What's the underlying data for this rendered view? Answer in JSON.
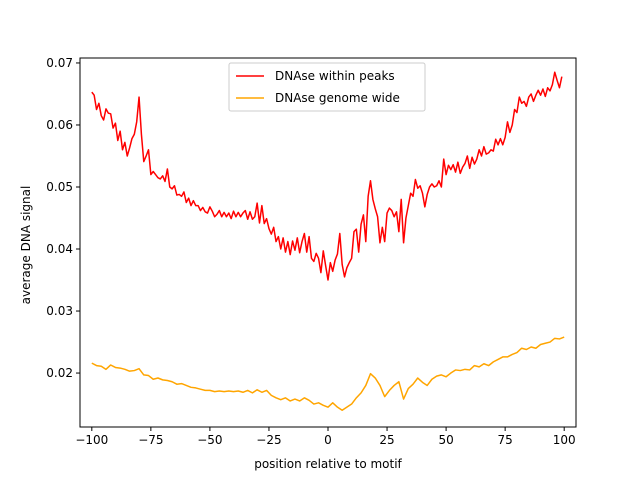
{
  "chart_data": {
    "type": "line",
    "title": "",
    "xlabel": "position relative to motif",
    "ylabel": "average DNA signal",
    "xlim": [
      -105,
      105
    ],
    "ylim": [
      0.0113,
      0.0708
    ],
    "xticks": [
      -100,
      -75,
      -50,
      -25,
      0,
      25,
      50,
      75,
      100
    ],
    "xtick_labels": [
      "−100",
      "−75",
      "−50",
      "−25",
      "0",
      "25",
      "50",
      "75",
      "100"
    ],
    "yticks": [
      0.02,
      0.03,
      0.04,
      0.05,
      0.06,
      0.07
    ],
    "ytick_labels": [
      "0.02",
      "0.03",
      "0.04",
      "0.05",
      "0.06",
      "0.07"
    ],
    "grid": false,
    "legend": {
      "placement": "top-center"
    },
    "series": [
      {
        "name": "DNAse within peaks",
        "color": "#ff0000",
        "points": [
          [
            -100,
            0.0653
          ],
          [
            -99,
            0.0648
          ],
          [
            -98,
            0.0625
          ],
          [
            -97,
            0.0635
          ],
          [
            -96,
            0.0615
          ],
          [
            -95,
            0.0608
          ],
          [
            -94,
            0.0626
          ],
          [
            -93,
            0.0619
          ],
          [
            -92,
            0.0618
          ],
          [
            -91,
            0.0595
          ],
          [
            -90,
            0.0603
          ],
          [
            -89,
            0.0575
          ],
          [
            -88,
            0.059
          ],
          [
            -87,
            0.056
          ],
          [
            -86,
            0.0572
          ],
          [
            -85,
            0.055
          ],
          [
            -84,
            0.0563
          ],
          [
            -83,
            0.0578
          ],
          [
            -82,
            0.0585
          ],
          [
            -81,
            0.0605
          ],
          [
            -80,
            0.0645
          ],
          [
            -79,
            0.0585
          ],
          [
            -78,
            0.0541
          ],
          [
            -77,
            0.055
          ],
          [
            -76,
            0.056
          ],
          [
            -75,
            0.052
          ],
          [
            -74,
            0.0525
          ],
          [
            -73,
            0.052
          ],
          [
            -72,
            0.0515
          ],
          [
            -71,
            0.0513
          ],
          [
            -70,
            0.0518
          ],
          [
            -69,
            0.0509
          ],
          [
            -68,
            0.0529
          ],
          [
            -67,
            0.05
          ],
          [
            -66,
            0.0497
          ],
          [
            -65,
            0.0502
          ],
          [
            -64,
            0.0487
          ],
          [
            -63,
            0.0488
          ],
          [
            -62,
            0.0485
          ],
          [
            -61,
            0.0492
          ],
          [
            -60,
            0.0475
          ],
          [
            -59,
            0.0482
          ],
          [
            -58,
            0.047
          ],
          [
            -57,
            0.0478
          ],
          [
            -56,
            0.047
          ],
          [
            -55,
            0.047
          ],
          [
            -54,
            0.0462
          ],
          [
            -53,
            0.0467
          ],
          [
            -52,
            0.046
          ],
          [
            -51,
            0.0458
          ],
          [
            -50,
            0.0468
          ],
          [
            -49,
            0.0461
          ],
          [
            -48,
            0.0452
          ],
          [
            -47,
            0.0456
          ],
          [
            -46,
            0.0462
          ],
          [
            -45,
            0.0452
          ],
          [
            -44,
            0.0459
          ],
          [
            -43,
            0.0452
          ],
          [
            -42,
            0.0458
          ],
          [
            -41,
            0.0449
          ],
          [
            -40,
            0.0461
          ],
          [
            -39,
            0.0452
          ],
          [
            -38,
            0.0459
          ],
          [
            -37,
            0.0452
          ],
          [
            -36,
            0.0458
          ],
          [
            -35,
            0.0462
          ],
          [
            -34,
            0.0448
          ],
          [
            -33,
            0.046
          ],
          [
            -32,
            0.0448
          ],
          [
            -31,
            0.0452
          ],
          [
            -30,
            0.0474
          ],
          [
            -29,
            0.0442
          ],
          [
            -28,
            0.047
          ],
          [
            -27,
            0.0441
          ],
          [
            -26,
            0.0449
          ],
          [
            -25,
            0.0433
          ],
          [
            -24,
            0.0424
          ],
          [
            -23,
            0.0435
          ],
          [
            -22,
            0.0412
          ],
          [
            -21,
            0.042
          ],
          [
            -20,
            0.04
          ],
          [
            -19,
            0.0418
          ],
          [
            -18,
            0.0395
          ],
          [
            -17,
            0.0412
          ],
          [
            -16,
            0.0391
          ],
          [
            -15,
            0.0413
          ],
          [
            -14,
            0.0398
          ],
          [
            -13,
            0.0418
          ],
          [
            -12,
            0.0394
          ],
          [
            -11,
            0.0412
          ],
          [
            -10,
            0.0425
          ],
          [
            -9,
            0.0395
          ],
          [
            -8,
            0.042
          ],
          [
            -7,
            0.0385
          ],
          [
            -6,
            0.038
          ],
          [
            -5,
            0.0393
          ],
          [
            -4,
            0.0385
          ],
          [
            -3,
            0.0362
          ],
          [
            -2,
            0.0397
          ],
          [
            -1,
            0.0373
          ],
          [
            0,
            0.035
          ],
          [
            1,
            0.0378
          ],
          [
            2,
            0.0364
          ],
          [
            3,
            0.0382
          ],
          [
            4,
            0.0392
          ],
          [
            5,
            0.0425
          ],
          [
            6,
            0.0375
          ],
          [
            7,
            0.0355
          ],
          [
            8,
            0.037
          ],
          [
            9,
            0.0378
          ],
          [
            10,
            0.0385
          ],
          [
            11,
            0.0428
          ],
          [
            12,
            0.0432
          ],
          [
            13,
            0.0395
          ],
          [
            14,
            0.044
          ],
          [
            15,
            0.0455
          ],
          [
            16,
            0.0412
          ],
          [
            17,
            0.0485
          ],
          [
            18,
            0.051
          ],
          [
            19,
            0.048
          ],
          [
            20,
            0.0465
          ],
          [
            21,
            0.0452
          ],
          [
            22,
            0.041
          ],
          [
            23,
            0.0435
          ],
          [
            24,
            0.0412
          ],
          [
            25,
            0.0458
          ],
          [
            26,
            0.0466
          ],
          [
            27,
            0.0462
          ],
          [
            28,
            0.0452
          ],
          [
            29,
            0.046
          ],
          [
            30,
            0.0428
          ],
          [
            31,
            0.048
          ],
          [
            32,
            0.041
          ],
          [
            33,
            0.045
          ],
          [
            34,
            0.047
          ],
          [
            35,
            0.049
          ],
          [
            36,
            0.0485
          ],
          [
            37,
            0.0512
          ],
          [
            38,
            0.0498
          ],
          [
            39,
            0.0502
          ],
          [
            40,
            0.049
          ],
          [
            41,
            0.0468
          ],
          [
            42,
            0.0488
          ],
          [
            43,
            0.05
          ],
          [
            44,
            0.0505
          ],
          [
            45,
            0.05
          ],
          [
            46,
            0.0502
          ],
          [
            47,
            0.051
          ],
          [
            48,
            0.05
          ],
          [
            49,
            0.0545
          ],
          [
            50,
            0.052
          ],
          [
            51,
            0.0535
          ],
          [
            52,
            0.0528
          ],
          [
            53,
            0.0536
          ],
          [
            54,
            0.0524
          ],
          [
            55,
            0.054
          ],
          [
            56,
            0.0522
          ],
          [
            57,
            0.0532
          ],
          [
            58,
            0.0538
          ],
          [
            59,
            0.055
          ],
          [
            60,
            0.053
          ],
          [
            61,
            0.0548
          ],
          [
            62,
            0.0537
          ],
          [
            63,
            0.0545
          ],
          [
            64,
            0.056
          ],
          [
            65,
            0.055
          ],
          [
            66,
            0.0565
          ],
          [
            67,
            0.0553
          ],
          [
            68,
            0.0555
          ],
          [
            69,
            0.056
          ],
          [
            70,
            0.0558
          ],
          [
            71,
            0.0577
          ],
          [
            72,
            0.0568
          ],
          [
            73,
            0.0578
          ],
          [
            74,
            0.0568
          ],
          [
            75,
            0.058
          ],
          [
            76,
            0.0605
          ],
          [
            77,
            0.0588
          ],
          [
            78,
            0.06
          ],
          [
            79,
            0.0625
          ],
          [
            80,
            0.062
          ],
          [
            81,
            0.0645
          ],
          [
            82,
            0.0635
          ],
          [
            83,
            0.0638
          ],
          [
            84,
            0.063
          ],
          [
            85,
            0.0645
          ],
          [
            86,
            0.065
          ],
          [
            87,
            0.0638
          ],
          [
            88,
            0.0648
          ],
          [
            89,
            0.0656
          ],
          [
            90,
            0.0648
          ],
          [
            91,
            0.0658
          ],
          [
            92,
            0.0646
          ],
          [
            93,
            0.066
          ],
          [
            94,
            0.0655
          ],
          [
            95,
            0.0665
          ],
          [
            96,
            0.0685
          ],
          [
            97,
            0.0672
          ],
          [
            98,
            0.066
          ],
          [
            99,
            0.0678
          ]
        ]
      },
      {
        "name": "DNAse genome wide",
        "color": "#ffa500",
        "points": [
          [
            -100,
            0.0216
          ],
          [
            -98,
            0.0212
          ],
          [
            -96,
            0.0211
          ],
          [
            -94,
            0.0206
          ],
          [
            -92,
            0.0213
          ],
          [
            -90,
            0.0209
          ],
          [
            -88,
            0.0208
          ],
          [
            -86,
            0.0206
          ],
          [
            -84,
            0.0203
          ],
          [
            -82,
            0.0204
          ],
          [
            -80,
            0.0207
          ],
          [
            -78,
            0.0197
          ],
          [
            -76,
            0.0196
          ],
          [
            -74,
            0.019
          ],
          [
            -72,
            0.0192
          ],
          [
            -70,
            0.0189
          ],
          [
            -68,
            0.0188
          ],
          [
            -66,
            0.0186
          ],
          [
            -64,
            0.0182
          ],
          [
            -62,
            0.0183
          ],
          [
            -60,
            0.018
          ],
          [
            -58,
            0.0177
          ],
          [
            -56,
            0.0176
          ],
          [
            -54,
            0.0174
          ],
          [
            -52,
            0.0172
          ],
          [
            -50,
            0.0172
          ],
          [
            -48,
            0.017
          ],
          [
            -46,
            0.0171
          ],
          [
            -44,
            0.017
          ],
          [
            -42,
            0.0171
          ],
          [
            -40,
            0.017
          ],
          [
            -38,
            0.0171
          ],
          [
            -36,
            0.0169
          ],
          [
            -34,
            0.0172
          ],
          [
            -32,
            0.0168
          ],
          [
            -30,
            0.0173
          ],
          [
            -28,
            0.0169
          ],
          [
            -26,
            0.0172
          ],
          [
            -24,
            0.0164
          ],
          [
            -22,
            0.016
          ],
          [
            -20,
            0.0157
          ],
          [
            -18,
            0.016
          ],
          [
            -16,
            0.0155
          ],
          [
            -14,
            0.0158
          ],
          [
            -12,
            0.0155
          ],
          [
            -10,
            0.016
          ],
          [
            -8,
            0.0156
          ],
          [
            -6,
            0.015
          ],
          [
            -4,
            0.0152
          ],
          [
            -2,
            0.0148
          ],
          [
            0,
            0.0145
          ],
          [
            2,
            0.0152
          ],
          [
            4,
            0.0145
          ],
          [
            6,
            0.014
          ],
          [
            8,
            0.0145
          ],
          [
            10,
            0.015
          ],
          [
            12,
            0.016
          ],
          [
            14,
            0.0168
          ],
          [
            16,
            0.018
          ],
          [
            18,
            0.0199
          ],
          [
            20,
            0.0192
          ],
          [
            22,
            0.018
          ],
          [
            24,
            0.0162
          ],
          [
            26,
            0.0172
          ],
          [
            28,
            0.018
          ],
          [
            30,
            0.0186
          ],
          [
            32,
            0.0158
          ],
          [
            34,
            0.0175
          ],
          [
            36,
            0.0182
          ],
          [
            38,
            0.0192
          ],
          [
            40,
            0.0185
          ],
          [
            42,
            0.018
          ],
          [
            44,
            0.019
          ],
          [
            46,
            0.0195
          ],
          [
            48,
            0.0197
          ],
          [
            50,
            0.0194
          ],
          [
            52,
            0.02
          ],
          [
            54,
            0.0205
          ],
          [
            56,
            0.0204
          ],
          [
            58,
            0.0206
          ],
          [
            60,
            0.0205
          ],
          [
            62,
            0.0212
          ],
          [
            64,
            0.021
          ],
          [
            66,
            0.0215
          ],
          [
            68,
            0.0212
          ],
          [
            70,
            0.0218
          ],
          [
            72,
            0.0222
          ],
          [
            74,
            0.0226
          ],
          [
            76,
            0.0226
          ],
          [
            78,
            0.023
          ],
          [
            80,
            0.0233
          ],
          [
            82,
            0.024
          ],
          [
            84,
            0.0238
          ],
          [
            86,
            0.0242
          ],
          [
            88,
            0.024
          ],
          [
            90,
            0.0246
          ],
          [
            92,
            0.0248
          ],
          [
            94,
            0.025
          ],
          [
            96,
            0.0256
          ],
          [
            98,
            0.0255
          ],
          [
            100,
            0.0258
          ]
        ]
      }
    ]
  }
}
